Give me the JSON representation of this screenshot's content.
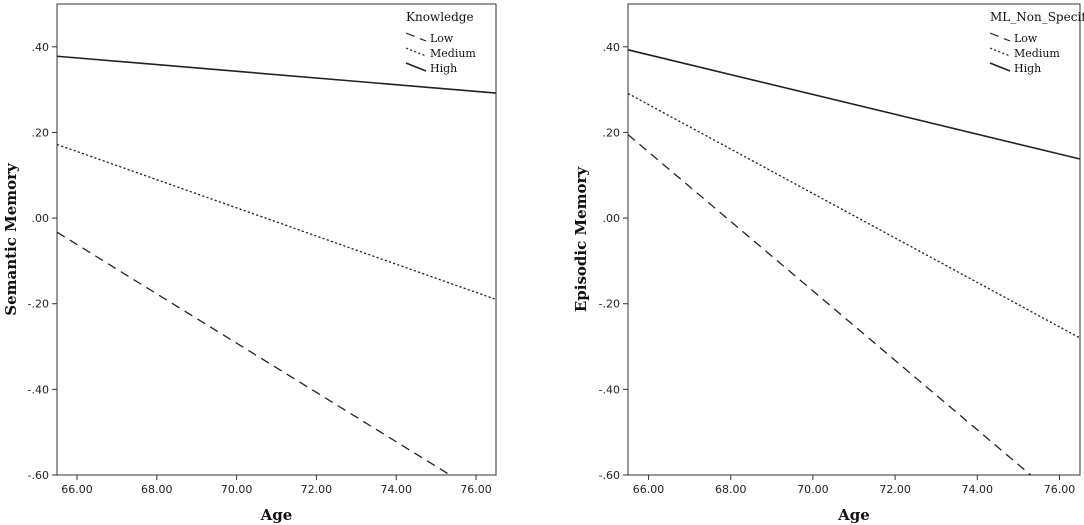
{
  "chart_data": [
    {
      "type": "line",
      "xlabel": "Age",
      "ylabel": "Semantic Memory",
      "xlim": [
        65.5,
        76.5
      ],
      "ylim": [
        -0.6,
        0.5
      ],
      "x_ticks": [
        "66.00",
        "68.00",
        "70.00",
        "72.00",
        "74.00",
        "76.00"
      ],
      "x_tick_values": [
        66,
        68,
        70,
        72,
        74,
        76
      ],
      "y_ticks": [
        ".40",
        ".20",
        ".00",
        "-.20",
        "-.40",
        "-.60"
      ],
      "y_tick_values": [
        0.4,
        0.2,
        0.0,
        -0.2,
        -0.4,
        -0.6
      ],
      "grid": false,
      "legend": {
        "title": "Knowledge",
        "position": "top-right",
        "entries": [
          "Low",
          "Medium",
          "High"
        ]
      },
      "series": [
        {
          "name": "Low",
          "style": "dashed",
          "x": [
            65.5,
            75.35
          ],
          "y": [
            -0.033,
            -0.6
          ]
        },
        {
          "name": "Medium",
          "style": "dotted",
          "x": [
            65.5,
            76.5
          ],
          "y": [
            0.172,
            -0.19
          ]
        },
        {
          "name": "High",
          "style": "solid",
          "x": [
            65.5,
            76.5
          ],
          "y": [
            0.378,
            0.292
          ]
        }
      ]
    },
    {
      "type": "line",
      "xlabel": "Age",
      "ylabel": "Episodic Memory",
      "xlim": [
        65.5,
        76.5
      ],
      "ylim": [
        -0.6,
        0.5
      ],
      "x_ticks": [
        "66.00",
        "68.00",
        "70.00",
        "72.00",
        "74.00",
        "76.00"
      ],
      "x_tick_values": [
        66,
        68,
        70,
        72,
        74,
        76
      ],
      "y_ticks": [
        ".40",
        ".20",
        ".00",
        "-.20",
        "-.40",
        "-.60"
      ],
      "y_tick_values": [
        0.4,
        0.2,
        0.0,
        -0.2,
        -0.4,
        -0.6
      ],
      "grid": false,
      "legend": {
        "title": "ML_Non_Specific",
        "position": "top-right",
        "entries": [
          "Low",
          "Medium",
          "High"
        ]
      },
      "series": [
        {
          "name": "Low",
          "style": "dashed",
          "x": [
            65.5,
            75.3
          ],
          "y": [
            0.195,
            -0.6
          ]
        },
        {
          "name": "Medium",
          "style": "dotted",
          "x": [
            65.5,
            76.5
          ],
          "y": [
            0.291,
            -0.28
          ]
        },
        {
          "name": "High",
          "style": "solid",
          "x": [
            65.5,
            76.5
          ],
          "y": [
            0.393,
            0.138
          ]
        }
      ]
    }
  ]
}
